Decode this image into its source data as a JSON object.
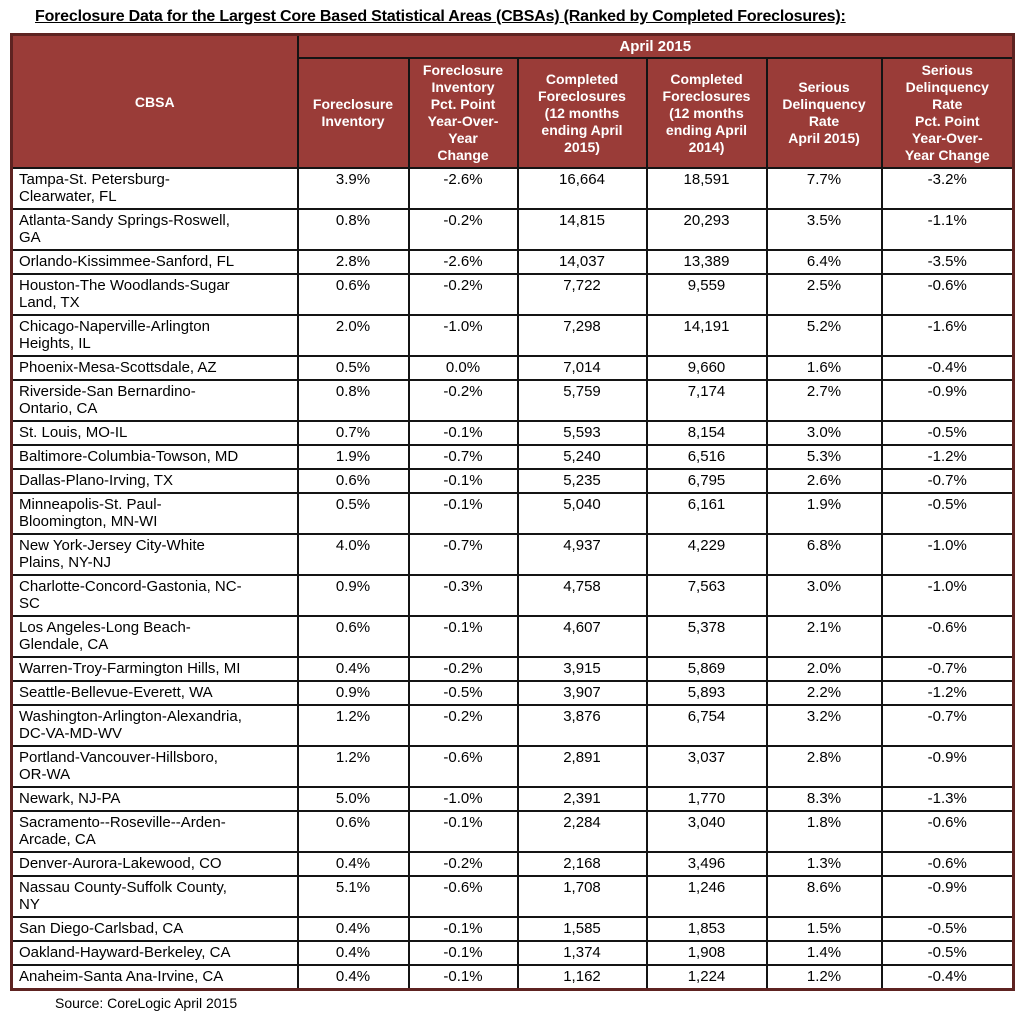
{
  "page": {
    "title": "Foreclosure Data for the Largest Core Based Statistical Areas (CBSAs) (Ranked by Completed Foreclosures):",
    "source_note": "Source: CoreLogic April 2015"
  },
  "colors": {
    "header_background": "#9A3C38",
    "header_text": "#FFFFFF",
    "outer_border": "#5E2321",
    "grid_border": "#141414",
    "body_text": "#000000"
  },
  "table": {
    "period_header": "April 2015",
    "columns": [
      "CBSA",
      "Foreclosure\nInventory",
      "Foreclosure\nInventory\nPct. Point\nYear-Over-\nYear\nChange",
      "Completed\nForeclosures\n(12 months\nending April\n2015)",
      "Completed\nForeclosures\n(12 months\nending April\n2014)",
      "Serious\nDelinquency\nRate\nApril 2015)",
      "Serious\nDelinquency\nRate\nPct. Point\nYear-Over-\nYear Change"
    ],
    "rows": [
      {
        "cbsa": "Tampa-St. Petersburg-\nClearwater, FL",
        "foreclosure_inventory": "3.9%",
        "fi_yoy_change": "-2.6%",
        "completed_2015": "16,664",
        "completed_2014": "18,591",
        "sdr": "7.7%",
        "sdr_yoy_change": "-3.2%"
      },
      {
        "cbsa": "Atlanta-Sandy Springs-Roswell,\nGA",
        "foreclosure_inventory": "0.8%",
        "fi_yoy_change": "-0.2%",
        "completed_2015": "14,815",
        "completed_2014": "20,293",
        "sdr": "3.5%",
        "sdr_yoy_change": "-1.1%"
      },
      {
        "cbsa": "Orlando-Kissimmee-Sanford, FL",
        "foreclosure_inventory": "2.8%",
        "fi_yoy_change": "-2.6%",
        "completed_2015": "14,037",
        "completed_2014": "13,389",
        "sdr": "6.4%",
        "sdr_yoy_change": "-3.5%"
      },
      {
        "cbsa": "Houston-The Woodlands-Sugar\nLand, TX",
        "foreclosure_inventory": "0.6%",
        "fi_yoy_change": "-0.2%",
        "completed_2015": "7,722",
        "completed_2014": "9,559",
        "sdr": "2.5%",
        "sdr_yoy_change": "-0.6%"
      },
      {
        "cbsa": "Chicago-Naperville-Arlington\nHeights, IL",
        "foreclosure_inventory": "2.0%",
        "fi_yoy_change": "-1.0%",
        "completed_2015": "7,298",
        "completed_2014": "14,191",
        "sdr": "5.2%",
        "sdr_yoy_change": "-1.6%"
      },
      {
        "cbsa": "Phoenix-Mesa-Scottsdale, AZ",
        "foreclosure_inventory": "0.5%",
        "fi_yoy_change": "0.0%",
        "completed_2015": "7,014",
        "completed_2014": "9,660",
        "sdr": "1.6%",
        "sdr_yoy_change": "-0.4%"
      },
      {
        "cbsa": "Riverside-San Bernardino-\nOntario, CA",
        "foreclosure_inventory": "0.8%",
        "fi_yoy_change": "-0.2%",
        "completed_2015": "5,759",
        "completed_2014": "7,174",
        "sdr": "2.7%",
        "sdr_yoy_change": "-0.9%"
      },
      {
        "cbsa": "St. Louis, MO-IL",
        "foreclosure_inventory": "0.7%",
        "fi_yoy_change": "-0.1%",
        "completed_2015": "5,593",
        "completed_2014": "8,154",
        "sdr": "3.0%",
        "sdr_yoy_change": "-0.5%"
      },
      {
        "cbsa": "Baltimore-Columbia-Towson, MD",
        "foreclosure_inventory": "1.9%",
        "fi_yoy_change": "-0.7%",
        "completed_2015": "5,240",
        "completed_2014": "6,516",
        "sdr": "5.3%",
        "sdr_yoy_change": "-1.2%"
      },
      {
        "cbsa": "Dallas-Plano-Irving, TX",
        "foreclosure_inventory": "0.6%",
        "fi_yoy_change": "-0.1%",
        "completed_2015": "5,235",
        "completed_2014": "6,795",
        "sdr": "2.6%",
        "sdr_yoy_change": "-0.7%"
      },
      {
        "cbsa": "Minneapolis-St. Paul-\nBloomington, MN-WI",
        "foreclosure_inventory": "0.5%",
        "fi_yoy_change": "-0.1%",
        "completed_2015": "5,040",
        "completed_2014": "6,161",
        "sdr": "1.9%",
        "sdr_yoy_change": "-0.5%"
      },
      {
        "cbsa": "New York-Jersey City-White\nPlains, NY-NJ",
        "foreclosure_inventory": "4.0%",
        "fi_yoy_change": "-0.7%",
        "completed_2015": "4,937",
        "completed_2014": "4,229",
        "sdr": "6.8%",
        "sdr_yoy_change": "-1.0%"
      },
      {
        "cbsa": "Charlotte-Concord-Gastonia, NC-\nSC",
        "foreclosure_inventory": "0.9%",
        "fi_yoy_change": "-0.3%",
        "completed_2015": "4,758",
        "completed_2014": "7,563",
        "sdr": "3.0%",
        "sdr_yoy_change": "-1.0%"
      },
      {
        "cbsa": "Los Angeles-Long Beach-\nGlendale, CA",
        "foreclosure_inventory": "0.6%",
        "fi_yoy_change": "-0.1%",
        "completed_2015": "4,607",
        "completed_2014": "5,378",
        "sdr": "2.1%",
        "sdr_yoy_change": "-0.6%"
      },
      {
        "cbsa": "Warren-Troy-Farmington Hills, MI",
        "foreclosure_inventory": "0.4%",
        "fi_yoy_change": "-0.2%",
        "completed_2015": "3,915",
        "completed_2014": "5,869",
        "sdr": "2.0%",
        "sdr_yoy_change": "-0.7%"
      },
      {
        "cbsa": "Seattle-Bellevue-Everett,  WA",
        "foreclosure_inventory": "0.9%",
        "fi_yoy_change": "-0.5%",
        "completed_2015": "3,907",
        "completed_2014": "5,893",
        "sdr": "2.2%",
        "sdr_yoy_change": "-1.2%"
      },
      {
        "cbsa": "Washington-Arlington-Alexandria,\nDC-VA-MD-WV",
        "foreclosure_inventory": "1.2%",
        "fi_yoy_change": "-0.2%",
        "completed_2015": "3,876",
        "completed_2014": "6,754",
        "sdr": "3.2%",
        "sdr_yoy_change": "-0.7%"
      },
      {
        "cbsa": "Portland-Vancouver-Hillsboro,\nOR-WA",
        "foreclosure_inventory": "1.2%",
        "fi_yoy_change": "-0.6%",
        "completed_2015": "2,891",
        "completed_2014": "3,037",
        "sdr": "2.8%",
        "sdr_yoy_change": "-0.9%"
      },
      {
        "cbsa": "Newark, NJ-PA",
        "foreclosure_inventory": "5.0%",
        "fi_yoy_change": "-1.0%",
        "completed_2015": "2,391",
        "completed_2014": "1,770",
        "sdr": "8.3%",
        "sdr_yoy_change": "-1.3%"
      },
      {
        "cbsa": "Sacramento--Roseville--Arden-\nArcade, CA",
        "foreclosure_inventory": "0.6%",
        "fi_yoy_change": "-0.1%",
        "completed_2015": "2,284",
        "completed_2014": "3,040",
        "sdr": "1.8%",
        "sdr_yoy_change": "-0.6%"
      },
      {
        "cbsa": "Denver-Aurora-Lakewood, CO",
        "foreclosure_inventory": "0.4%",
        "fi_yoy_change": "-0.2%",
        "completed_2015": "2,168",
        "completed_2014": "3,496",
        "sdr": "1.3%",
        "sdr_yoy_change": "-0.6%"
      },
      {
        "cbsa": "Nassau County-Suffolk County,\nNY",
        "foreclosure_inventory": "5.1%",
        "fi_yoy_change": "-0.6%",
        "completed_2015": "1,708",
        "completed_2014": "1,246",
        "sdr": "8.6%",
        "sdr_yoy_change": "-0.9%"
      },
      {
        "cbsa": "San Diego-Carlsbad, CA",
        "foreclosure_inventory": "0.4%",
        "fi_yoy_change": "-0.1%",
        "completed_2015": "1,585",
        "completed_2014": "1,853",
        "sdr": "1.5%",
        "sdr_yoy_change": "-0.5%"
      },
      {
        "cbsa": "Oakland-Hayward-Berkeley, CA",
        "foreclosure_inventory": "0.4%",
        "fi_yoy_change": "-0.1%",
        "completed_2015": "1,374",
        "completed_2014": "1,908",
        "sdr": "1.4%",
        "sdr_yoy_change": "-0.5%"
      },
      {
        "cbsa": "Anaheim-Santa Ana-Irvine, CA",
        "foreclosure_inventory": "0.4%",
        "fi_yoy_change": "-0.1%",
        "completed_2015": "1,162",
        "completed_2014": "1,224",
        "sdr": "1.2%",
        "sdr_yoy_change": "-0.4%"
      }
    ]
  }
}
